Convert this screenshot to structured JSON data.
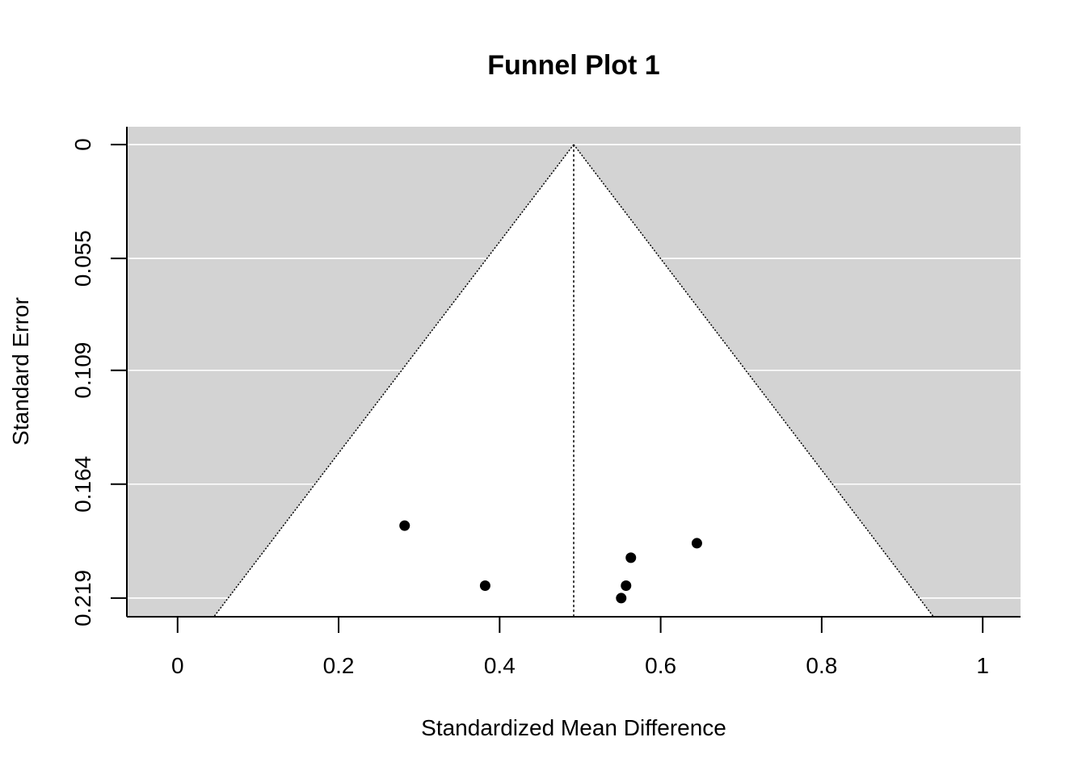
{
  "chart_data": {
    "type": "scatter",
    "title": "Funnel Plot 1",
    "xlabel": "Standardized Mean Difference",
    "ylabel": "Standard Error",
    "xlim": [
      -0.063,
      1.047
    ],
    "ylim": [
      0.228,
      -0.0086
    ],
    "y_reversed": true,
    "xticks": [
      0,
      0.2,
      0.4,
      0.6,
      0.8,
      1
    ],
    "xtick_labels": [
      "0",
      "0.2",
      "0.4",
      "0.6",
      "0.8",
      "1"
    ],
    "yticks": [
      0,
      0.055,
      0.109,
      0.164,
      0.219
    ],
    "ytick_labels": [
      "0",
      "0.055",
      "0.109",
      "0.164",
      "0.219"
    ],
    "center_estimate": 0.492,
    "funnel_z": 1.96,
    "grid": true,
    "background_color": "#d3d3d3",
    "funnel_fill": "#ffffff",
    "point_color": "#000000",
    "points": [
      {
        "x": 0.282,
        "y": 0.184
      },
      {
        "x": 0.382,
        "y": 0.213
      },
      {
        "x": 0.551,
        "y": 0.219
      },
      {
        "x": 0.557,
        "y": 0.213
      },
      {
        "x": 0.563,
        "y": 0.1995
      },
      {
        "x": 0.645,
        "y": 0.1925
      }
    ]
  }
}
